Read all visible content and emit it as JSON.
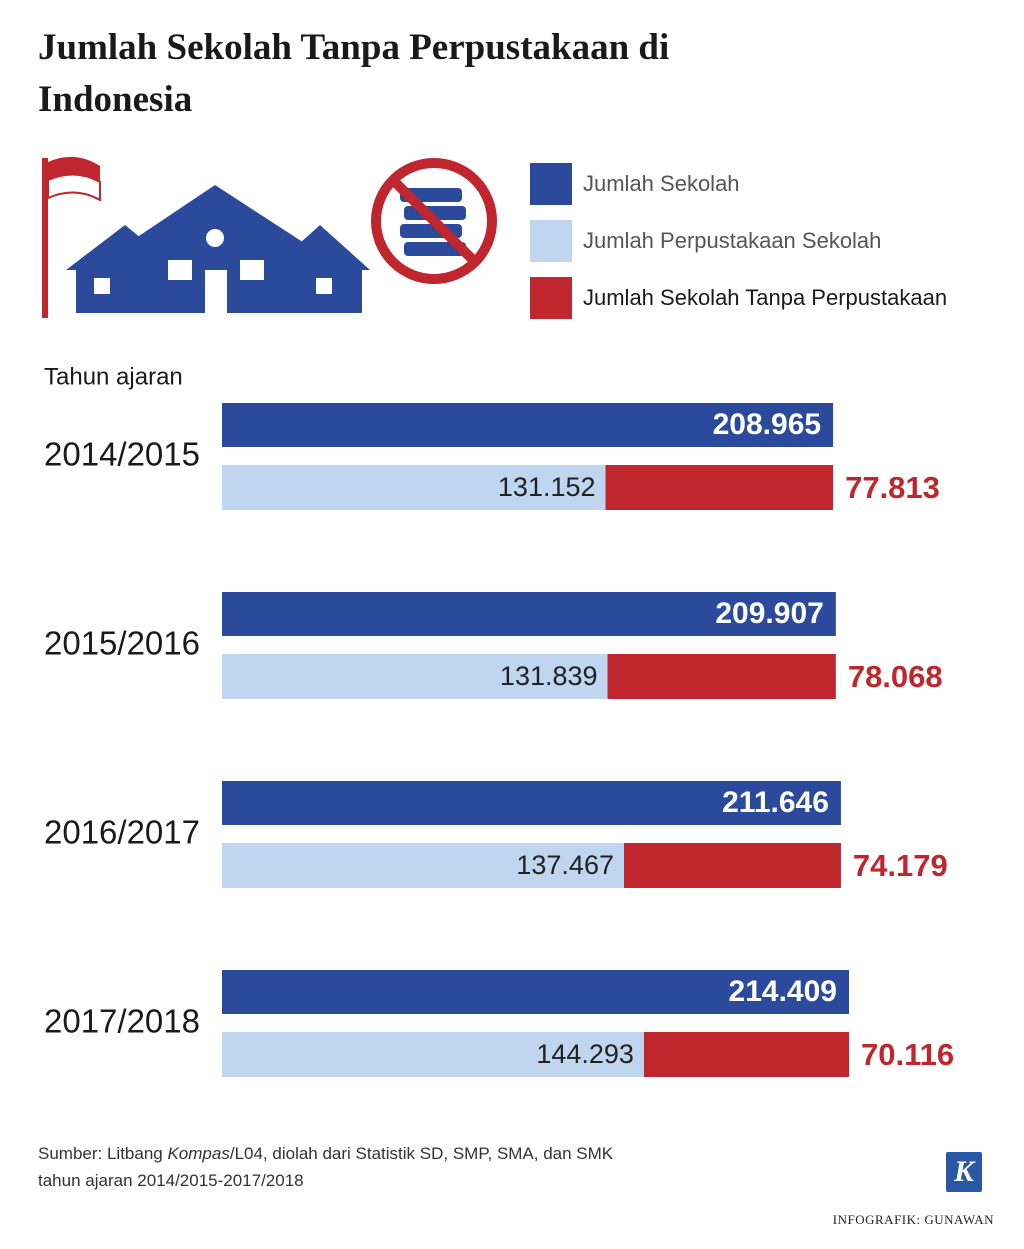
{
  "chart_data": {
    "type": "bar",
    "orientation": "horizontal",
    "title": "Jumlah Sekolah Tanpa Perpustakaan di Indonesia",
    "y_label": "Tahun ajaran",
    "categories": [
      "2014/2015",
      "2015/2016",
      "2016/2017",
      "2017/2018"
    ],
    "series": [
      {
        "name": "Jumlah Sekolah",
        "color": "#2b4a9b",
        "values": [
          208965,
          209907,
          211646,
          214409
        ],
        "value_labels": [
          "208.965",
          "209.907",
          "211.646",
          "214.409"
        ]
      },
      {
        "name": "Jumlah Perpustakaan Sekolah",
        "color": "#c0d5ef",
        "values": [
          131152,
          131839,
          137467,
          144293
        ],
        "value_labels": [
          "131.152",
          "131.839",
          "137.467",
          "144.293"
        ]
      },
      {
        "name": "Jumlah Sekolah Tanpa Perpustakaan",
        "color": "#c0262d",
        "values": [
          77813,
          78068,
          74179,
          70116
        ],
        "value_labels": [
          "77.813",
          "78.068",
          "74.179",
          "70.116"
        ]
      }
    ],
    "source": [
      "Sumber: Litbang ",
      "Kompas",
      "/L04, diolah dari Statistik SD, SMP, SMA, dan SMK",
      "tahun ajaran  2014/2015-2017/2018"
    ],
    "credit": "INFOGRAFIK: GUNAWAN",
    "logo": "K"
  }
}
